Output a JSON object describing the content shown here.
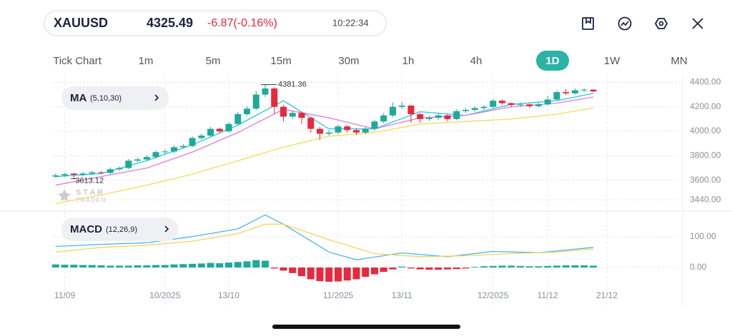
{
  "header": {
    "symbol": "XAUUSD",
    "price": 4325.49,
    "change": "-6.87(-0.16%)",
    "time": "10:22:34"
  },
  "timeframes": [
    "Tick Chart",
    "1m",
    "5m",
    "15m",
    "30m",
    "1h",
    "4h",
    "1D",
    "1W",
    "MN"
  ],
  "watermark": {
    "line1": "STAR",
    "line2": "TRADER"
  },
  "chart_data": {
    "type": "candlestick",
    "indicator": "MA",
    "indicator_params": "(5,10,30)",
    "up_color": "#1fa99a",
    "down_color": "#e8283c",
    "open": [
      3630,
      3640,
      3655,
      3645,
      3655,
      3665,
      3660,
      3690,
      3700,
      3760,
      3770,
      3790,
      3830,
      3835,
      3870,
      3880,
      3945,
      3965,
      4020,
      4000,
      4060,
      4140,
      4185,
      4300,
      4350,
      4200,
      4120,
      4150,
      4110,
      4020,
      3980,
      3990,
      4040,
      4010,
      3990,
      4020,
      4080,
      4130,
      4200,
      4210,
      4140,
      4100,
      4110,
      4130,
      4100,
      4165,
      4175,
      4190,
      4200,
      4250,
      4230,
      4215,
      4220,
      4205,
      4220,
      4260,
      4320,
      4310,
      4335,
      4340
    ],
    "high": [
      3655,
      3662,
      3660,
      3668,
      3678,
      3675,
      3705,
      3712,
      3775,
      3785,
      3805,
      3845,
      3850,
      3885,
      3895,
      3960,
      3980,
      4035,
      4030,
      4075,
      4160,
      4205,
      4330,
      4381.36,
      4360,
      4215,
      4170,
      4160,
      4120,
      4035,
      4010,
      4055,
      4050,
      4025,
      4035,
      4095,
      4150,
      4235,
      4240,
      4215,
      4150,
      4125,
      4145,
      4140,
      4180,
      4190,
      4205,
      4215,
      4265,
      4260,
      4235,
      4235,
      4225,
      4235,
      4290,
      4335,
      4345,
      4350,
      4352,
      4345
    ],
    "low": [
      3620,
      3628,
      3613.12,
      3632,
      3642,
      3648,
      3650,
      3678,
      3688,
      3748,
      3758,
      3778,
      3815,
      3822,
      3858,
      3868,
      3930,
      3950,
      3985,
      3990,
      4045,
      4125,
      4170,
      4280,
      4140,
      4080,
      4100,
      4060,
      3990,
      3930,
      3965,
      3975,
      3990,
      3970,
      3975,
      4005,
      4065,
      4115,
      4185,
      4070,
      4070,
      4085,
      4095,
      4080,
      4090,
      4150,
      4160,
      4175,
      4185,
      4215,
      4200,
      4200,
      4190,
      4195,
      4210,
      4250,
      4295,
      4300,
      4320,
      4320
    ],
    "close": [
      3640,
      3650,
      3645,
      3655,
      3665,
      3660,
      3690,
      3700,
      3760,
      3770,
      3790,
      3830,
      3835,
      3870,
      3880,
      3945,
      3965,
      4020,
      4000,
      4060,
      4140,
      4185,
      4300,
      4350,
      4200,
      4120,
      4150,
      4110,
      4020,
      3980,
      3990,
      4040,
      4010,
      3990,
      4020,
      4080,
      4130,
      4200,
      4210,
      4140,
      4100,
      4110,
      4130,
      4100,
      4165,
      4175,
      4190,
      4200,
      4250,
      4230,
      4215,
      4220,
      4205,
      4220,
      4260,
      4320,
      4310,
      4335,
      4340,
      4325.49
    ],
    "ma_lines": [
      {
        "color": "#2ec4dc",
        "x": [
          0,
          5,
          10,
          15,
          20,
          25,
          30,
          35,
          40,
          45,
          50,
          55,
          59
        ],
        "values": [
          3630,
          3655,
          3760,
          3890,
          4050,
          4250,
          4020,
          4020,
          4160,
          4130,
          4220,
          4250,
          4310
        ]
      },
      {
        "color": "#d77fe0",
        "x": [
          0,
          5,
          10,
          15,
          20,
          25,
          30,
          35,
          40,
          45,
          50,
          55,
          59
        ],
        "values": [
          3560,
          3630,
          3700,
          3830,
          3990,
          4180,
          4110,
          4020,
          4110,
          4130,
          4200,
          4230,
          4280
        ]
      },
      {
        "color": "#f2dc5a",
        "x": [
          0,
          5,
          10,
          15,
          20,
          25,
          30,
          35,
          40,
          45,
          50,
          55,
          59
        ],
        "values": [
          3410,
          3480,
          3560,
          3650,
          3760,
          3870,
          3960,
          3990,
          4060,
          4080,
          4100,
          4140,
          4190
        ]
      }
    ],
    "xlim": [
      -0.3,
      68.5
    ],
    "xticks": [
      {
        "value": 1,
        "label": "11/09"
      },
      {
        "value": 12,
        "label": "10/2025"
      },
      {
        "value": 19,
        "label": "13/10"
      },
      {
        "value": 31,
        "label": "11/2025"
      },
      {
        "value": 38,
        "label": "13/11"
      },
      {
        "value": 48,
        "label": "12/2025"
      },
      {
        "value": 54,
        "label": "11/12"
      },
      {
        "value": 60.5,
        "label": "21/12"
      }
    ],
    "ylim": [
      3400,
      4420
    ],
    "yticks": [
      {
        "value": 4400,
        "label": "4400.00"
      },
      {
        "value": 4200,
        "label": "4200.00"
      },
      {
        "value": 4000,
        "label": "4000.00"
      },
      {
        "value": 3800,
        "label": "3800.00"
      },
      {
        "value": 3600,
        "label": "3600.00"
      },
      {
        "value": 3440,
        "label": "3440.00"
      }
    ],
    "macd": {
      "label": "MACD",
      "params": "(12,26,9)",
      "ylim": [
        -60,
        180
      ],
      "yticks": [
        {
          "value": 100,
          "label": "100.00"
        },
        {
          "value": 0,
          "label": "0.00"
        }
      ],
      "line": {
        "color": "#4ab3f0",
        "x": [
          0,
          5,
          10,
          15,
          20,
          23,
          25,
          30,
          33,
          38,
          43,
          48,
          53,
          59
        ],
        "values": [
          68,
          75,
          80,
          100,
          125,
          170,
          140,
          50,
          25,
          47,
          35,
          52,
          48,
          65
        ]
      },
      "signal": {
        "color": "#f2d560",
        "x": [
          0,
          5,
          10,
          15,
          20,
          23,
          25,
          30,
          35,
          40,
          45,
          50,
          55,
          59
        ],
        "values": [
          50,
          65,
          72,
          85,
          110,
          140,
          140,
          90,
          45,
          35,
          38,
          45,
          50,
          60
        ]
      },
      "histogram": [
        10,
        9,
        9,
        8,
        8,
        7,
        6,
        6,
        6,
        7,
        7,
        8,
        8,
        10,
        11,
        12,
        13,
        15,
        14,
        16,
        18,
        20,
        24,
        22,
        -3,
        -10,
        -18,
        -28,
        -38,
        -44,
        -46,
        -45,
        -42,
        -38,
        -30,
        -22,
        -14,
        -6,
        3,
        -3,
        -6,
        -7,
        -7,
        -6,
        -5,
        -3,
        2,
        4,
        5,
        6,
        6,
        5,
        4,
        4,
        5,
        6,
        7,
        7,
        7,
        6
      ]
    }
  }
}
